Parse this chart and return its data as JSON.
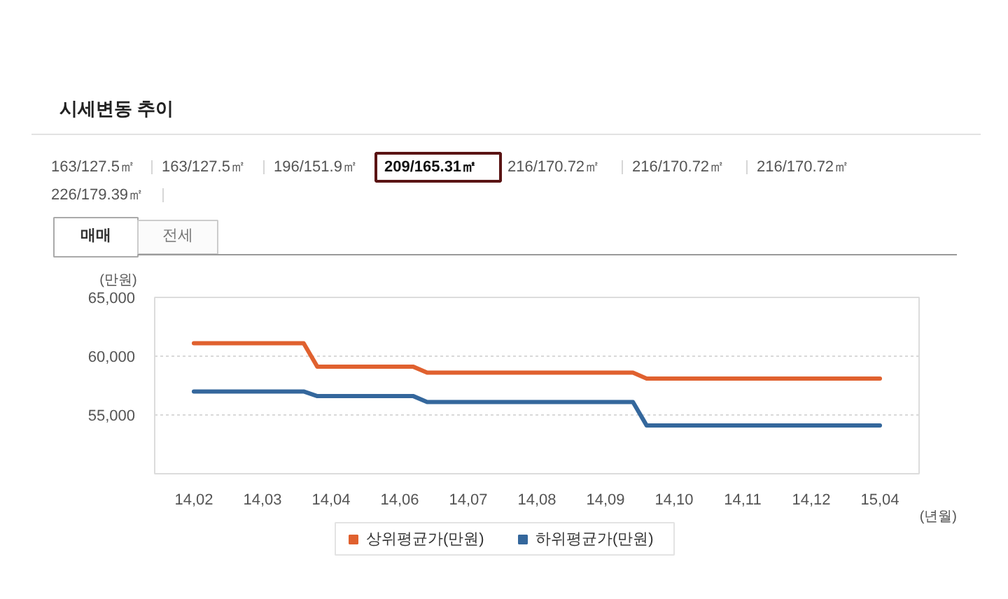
{
  "chart_data": {
    "type": "line",
    "title": "시세변동 추이",
    "annotations": [
      "163/127.5㎡",
      "163/127.5㎡",
      "196/151.9㎡",
      "209/165.31㎡",
      "216/170.72㎡",
      "216/170.72㎡",
      "216/170.72㎡",
      "226/179.39㎡",
      "매매",
      "전세"
    ],
    "xlabel": "(년월)",
    "ylabel": "(만원)",
    "categories": [
      "14,02",
      null,
      null,
      null,
      null,
      "14,03",
      null,
      null,
      null,
      null,
      "14,04",
      null,
      null,
      null,
      null,
      "14,06",
      null,
      null,
      null,
      null,
      "14,07",
      null,
      null,
      null,
      null,
      "14,08",
      null,
      null,
      null,
      null,
      "14,09",
      null,
      null,
      null,
      null,
      "14,10",
      null,
      null,
      null,
      null,
      "14,11",
      null,
      null,
      null,
      null,
      "14,12",
      null,
      null,
      null,
      null,
      "15,04"
    ],
    "series": [
      {
        "name": "상위평균가(만원)",
        "color": "#e0612f",
        "values": [
          61100,
          61100,
          61100,
          61100,
          61100,
          61100,
          61100,
          61100,
          61100,
          59100,
          59100,
          59100,
          59100,
          59100,
          59100,
          59100,
          59100,
          58600,
          58600,
          58600,
          58600,
          58600,
          58600,
          58600,
          58600,
          58600,
          58600,
          58600,
          58600,
          58600,
          58600,
          58600,
          58600,
          58100,
          58100,
          58100,
          58100,
          58100,
          58100,
          58100,
          58100,
          58100,
          58100,
          58100,
          58100,
          58100,
          58100,
          58100,
          58100,
          58100,
          58100
        ]
      },
      {
        "name": "하위평균가(만원)",
        "color": "#34679c",
        "values": [
          57000,
          57000,
          57000,
          57000,
          57000,
          57000,
          57000,
          57000,
          57000,
          56600,
          56600,
          56600,
          56600,
          56600,
          56600,
          56600,
          56600,
          56100,
          56100,
          56100,
          56100,
          56100,
          56100,
          56100,
          56100,
          56100,
          56100,
          56100,
          56100,
          56100,
          56100,
          56100,
          56100,
          54100,
          54100,
          54100,
          54100,
          54100,
          54100,
          54100,
          54100,
          54100,
          54100,
          54100,
          54100,
          54100,
          54100,
          54100,
          54100,
          54100,
          54100
        ]
      }
    ],
    "ylim": [
      50000,
      65000
    ],
    "yticks": [
      {
        "value": 55000,
        "label": "55,000"
      },
      {
        "value": 60000,
        "label": "60,000"
      },
      {
        "value": 65000,
        "label": "65,000"
      }
    ],
    "grid": "y",
    "legend": "bottom"
  }
}
